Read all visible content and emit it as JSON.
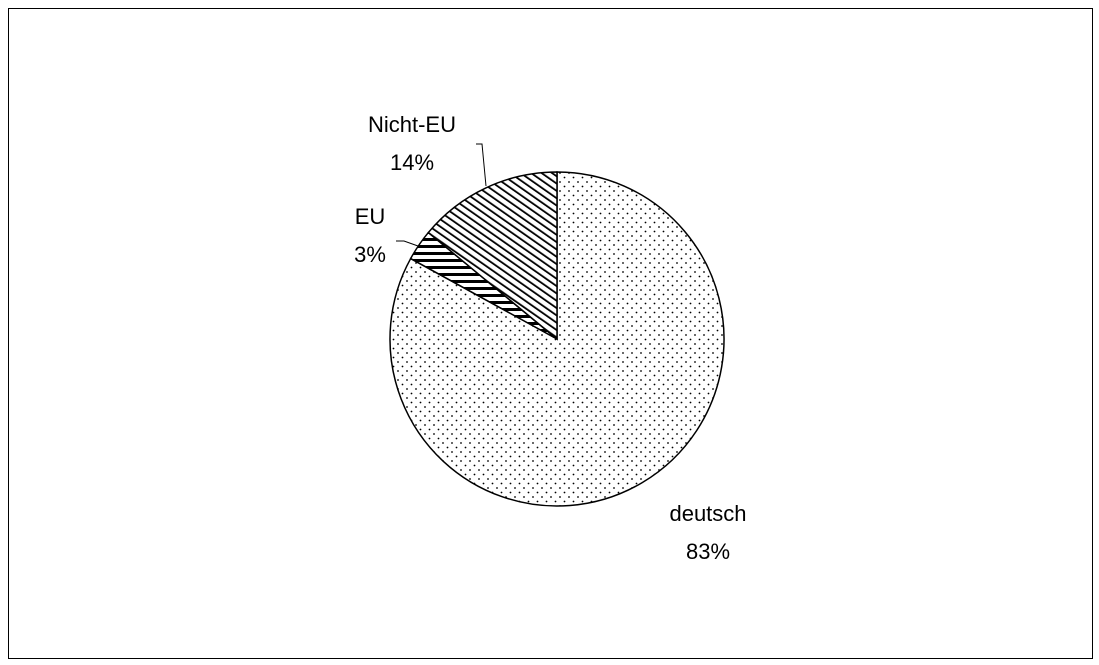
{
  "chart_data": {
    "type": "pie",
    "start_angle_deg": 90,
    "direction": "clockwise",
    "title": "",
    "slices": [
      {
        "label": "deutsch",
        "value": 83,
        "value_label": "83%",
        "pattern": "dots"
      },
      {
        "label": "EU",
        "value": 3,
        "value_label": "3%",
        "pattern": "horizontal-stripes"
      },
      {
        "label": "Nicht-EU",
        "value": 14,
        "value_label": "14%",
        "pattern": "diagonal-hatch"
      }
    ],
    "legend": "none",
    "colors": {
      "stroke": "#000000",
      "background": "#ffffff",
      "pattern": "#000000"
    }
  }
}
